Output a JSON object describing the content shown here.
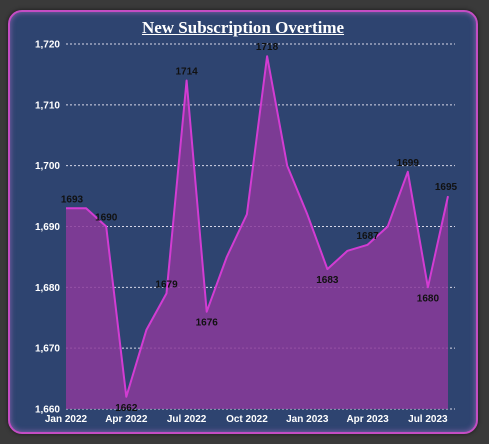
{
  "chart_data": {
    "type": "area",
    "title": "New Subscription Overtime",
    "xlabel": "",
    "ylabel": "",
    "ylim": [
      1660,
      1720
    ],
    "y_ticks": [
      "1,660",
      "1,670",
      "1,680",
      "1,690",
      "1,700",
      "1,710",
      "1,720"
    ],
    "y_tick_values": [
      1660,
      1670,
      1680,
      1690,
      1700,
      1710,
      1720
    ],
    "x_ticks": [
      {
        "label": "Jan 2022",
        "index": 0
      },
      {
        "label": "Apr 2022",
        "index": 3
      },
      {
        "label": "Jul 2022",
        "index": 6
      },
      {
        "label": "Oct 2022",
        "index": 9
      },
      {
        "label": "Jan 2023",
        "index": 12
      },
      {
        "label": "Apr 2023",
        "index": 15
      },
      {
        "label": "Jul 2023",
        "index": 18
      }
    ],
    "x": [
      "Jan 2022",
      "Feb 2022",
      "Mar 2022",
      "Apr 2022",
      "May 2022",
      "Jun 2022",
      "Jul 2022",
      "Aug 2022",
      "Sep 2022",
      "Oct 2022",
      "Nov 2022",
      "Dec 2022",
      "Jan 2023",
      "Feb 2023",
      "Mar 2023",
      "Apr 2023",
      "May 2023",
      "Jun 2023",
      "Jul 2023",
      "Aug 2023"
    ],
    "values": [
      1693,
      1693,
      1690,
      1662,
      1673,
      1679,
      1714,
      1676,
      1685,
      1692,
      1718,
      1700,
      1692,
      1683,
      1686,
      1687,
      1690,
      1699,
      1680,
      1695
    ],
    "labels": [
      {
        "index": 0,
        "text": "1693"
      },
      {
        "index": 2,
        "text": "1690"
      },
      {
        "index": 3,
        "text": "1662"
      },
      {
        "index": 5,
        "text": "1679"
      },
      {
        "index": 6,
        "text": "1714"
      },
      {
        "index": 7,
        "text": "1676"
      },
      {
        "index": 10,
        "text": "1718"
      },
      {
        "index": 13,
        "text": "1683"
      },
      {
        "index": 15,
        "text": "1687"
      },
      {
        "index": 17,
        "text": "1699"
      },
      {
        "index": 18,
        "text": "1680"
      },
      {
        "index": 19,
        "text": "1695"
      }
    ],
    "grid": true,
    "colors": {
      "line": "#d23cd2",
      "fill": "#8a3a9a",
      "grid": "#d8d8e8",
      "background": "#2e4470",
      "border": "#c44dc4"
    }
  }
}
